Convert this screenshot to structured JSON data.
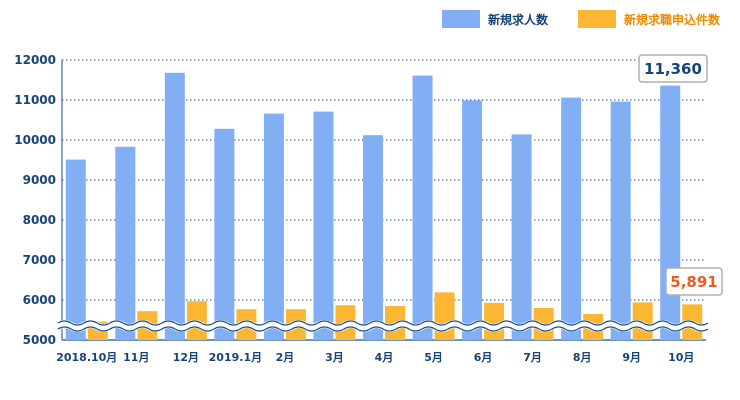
{
  "chart_data": {
    "type": "bar",
    "categories": [
      "2018.10月",
      "11月",
      "12月",
      "2019.1月",
      "2月",
      "3月",
      "4月",
      "5月",
      "6月",
      "7月",
      "8月",
      "9月",
      "10月"
    ],
    "series": [
      {
        "name": "新規求人数",
        "values": [
          9510,
          9830,
          11680,
          10280,
          10660,
          10710,
          10120,
          11610,
          10990,
          10140,
          11060,
          10960,
          11360
        ],
        "color": "#82aff4"
      },
      {
        "name": "新規求職申込件数",
        "values": [
          5460,
          5720,
          5970,
          5770,
          5770,
          5870,
          5850,
          6190,
          5930,
          5800,
          5650,
          5940,
          5891
        ],
        "color": "#fbb734"
      }
    ],
    "title": "",
    "xlabel": "",
    "ylabel": "",
    "ylim": [
      5000,
      12000
    ],
    "yticks": [
      "5000",
      "6000",
      "7000",
      "8000",
      "9000",
      "10000",
      "11000",
      "12000"
    ],
    "axis_break": true,
    "grid": true,
    "legend": "top-right",
    "callouts": [
      {
        "label": "11,360",
        "series": 0,
        "category": 12
      },
      {
        "label": "5,891",
        "series": 1,
        "category": 12
      }
    ]
  }
}
